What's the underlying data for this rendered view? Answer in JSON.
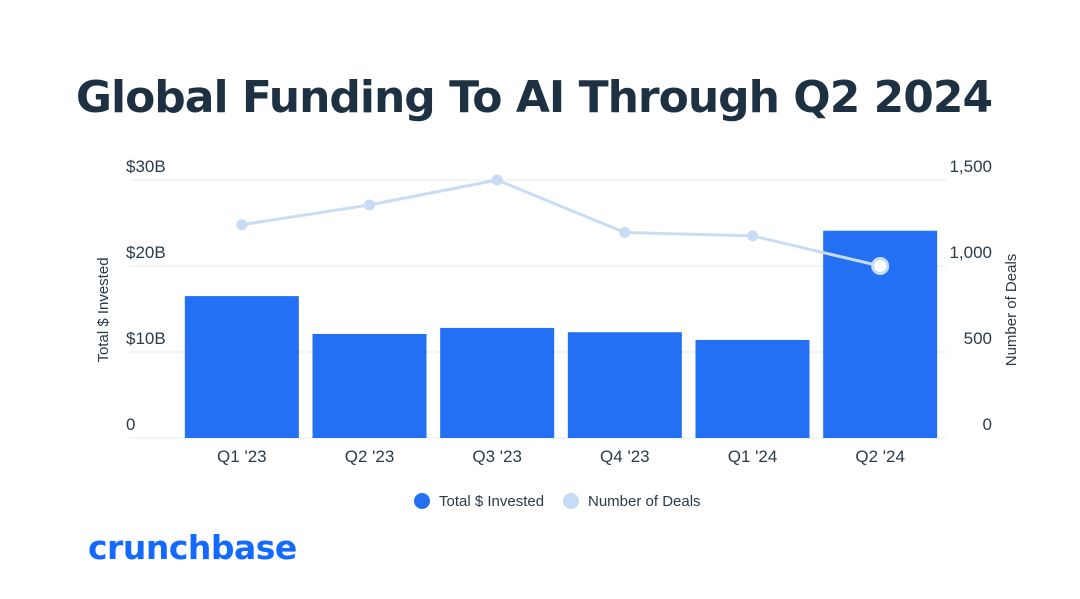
{
  "chart_data": {
    "type": "bar+line",
    "title": "Global Funding To AI Through Q2 2024",
    "categories": [
      "Q1 '23",
      "Q2 '23",
      "Q3 '23",
      "Q4 '23",
      "Q1 '24",
      "Q2 '24"
    ],
    "series": [
      {
        "name": "Total $ Invested",
        "type": "bar",
        "axis": "left",
        "color": "#2470f4",
        "values": [
          16.5,
          12.1,
          12.8,
          12.3,
          11.4,
          24.1
        ]
      },
      {
        "name": "Number of Deals",
        "type": "line",
        "axis": "right",
        "color": "#c9dcf5",
        "values": [
          1240,
          1355,
          1500,
          1195,
          1175,
          1000
        ]
      }
    ],
    "ylabel": "Total $ Invested",
    "y2label": "Number of Deals",
    "ylim": [
      0,
      30
    ],
    "y2lim": [
      0,
      1500
    ],
    "yticks": [
      {
        "value": 0,
        "label": "0"
      },
      {
        "value": 10,
        "label": "$10B"
      },
      {
        "value": 20,
        "label": "$20B"
      },
      {
        "value": 30,
        "label": "$30B"
      }
    ],
    "y2ticks": [
      {
        "value": 0,
        "label": "0"
      },
      {
        "value": 500,
        "label": "500"
      },
      {
        "value": 1000,
        "label": "1,000"
      },
      {
        "value": 1500,
        "label": "1,500"
      }
    ],
    "grid": true,
    "legend": "bottom-center"
  },
  "brand": {
    "logo_text": "crunchbase",
    "color": "#146aff"
  }
}
